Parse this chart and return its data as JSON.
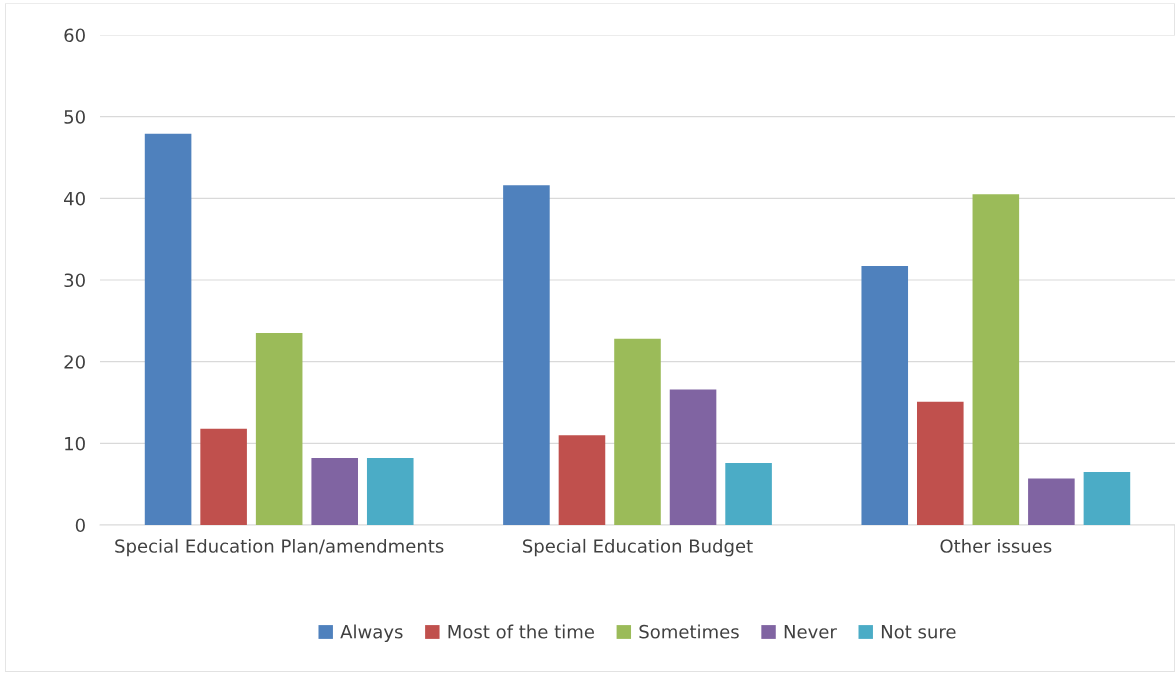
{
  "chart_data": {
    "type": "bar",
    "categories": [
      "Special Education Plan/amendments",
      "Special Education Budget",
      "Other issues"
    ],
    "series": [
      {
        "name": "Always",
        "color": "#4f81bd",
        "values": [
          47.9,
          41.6,
          31.7
        ]
      },
      {
        "name": "Most of the time",
        "color": "#c0504d",
        "values": [
          11.8,
          11.0,
          15.1
        ]
      },
      {
        "name": "Sometimes",
        "color": "#9bbb59",
        "values": [
          23.5,
          22.8,
          40.5
        ]
      },
      {
        "name": "Never",
        "color": "#8064a2",
        "values": [
          8.2,
          16.6,
          5.7
        ]
      },
      {
        "name": "Not sure",
        "color": "#4bacc6",
        "values": [
          8.2,
          7.6,
          6.5
        ]
      }
    ],
    "ylim": [
      0,
      60
    ],
    "yticks": [
      0,
      10,
      20,
      30,
      40,
      50,
      60
    ],
    "grid": "y",
    "legend": "bottom"
  }
}
